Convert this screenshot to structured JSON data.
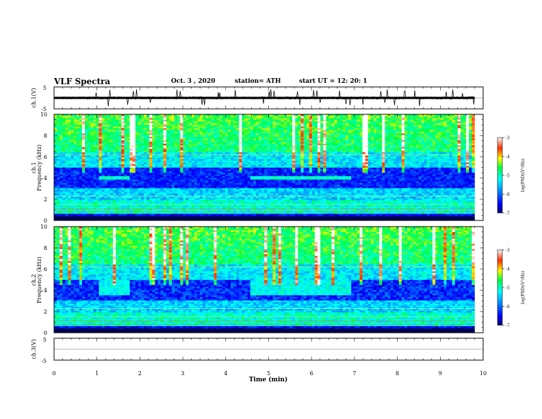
{
  "header": {
    "title": "VLF Spectra",
    "date": "Oct. 3 , 2020",
    "station": "station= ATH",
    "start": "start UT = 12: 20: 1"
  },
  "colorbar": {
    "label": "log(PSD)(V²/Hz)",
    "ticks": [
      "-3",
      "-4",
      "-5",
      "-6",
      "-7"
    ]
  },
  "chart_data": [
    {
      "type": "line",
      "panel": "ch.1 waveform",
      "ylabel": "ch.1(V)",
      "ylim": [
        -5,
        5
      ],
      "yticks": [
        "5",
        "-5"
      ],
      "xlim": [
        0,
        10
      ],
      "description_values": {
        "baseline": 0.0,
        "noise_amplitude": 0.6,
        "spike_amplitude": 4.0
      }
    },
    {
      "type": "heatmap",
      "panel": "ch.1 spectrogram",
      "ylabel": "ch.1 Frequency (kHz)",
      "ylim": [
        0,
        10
      ],
      "yticks": [
        "0",
        "2",
        "4",
        "6",
        "8",
        "10"
      ],
      "xlim": [
        0,
        10
      ],
      "data_end_min": 9.8,
      "clim": [
        -7,
        -3
      ],
      "features": [
        {
          "name": "quiet band",
          "fmin_khz": 3.0,
          "fmax_khz": 5.0
        },
        {
          "name": "tone",
          "f_khz": 4.0,
          "t_start_min": 1.05,
          "t_end_min": 1.75
        },
        {
          "name": "tone",
          "f_khz": 4.0,
          "t_start_min": 4.6,
          "t_end_min": 6.95
        }
      ]
    },
    {
      "type": "heatmap",
      "panel": "ch.2 spectrogram",
      "ylabel": "ch.2 Frequency (kHz)",
      "ylim": [
        0,
        10
      ],
      "yticks": [
        "0",
        "2",
        "4",
        "6",
        "8",
        "10"
      ],
      "xlim": [
        0,
        10
      ],
      "data_end_min": 9.8,
      "clim": [
        -7,
        -3
      ],
      "features": [
        {
          "name": "elevated band",
          "fmin_khz": 3.5,
          "fmax_khz": 5.0,
          "t_start_min": 1.05,
          "t_end_min": 1.75
        },
        {
          "name": "elevated band",
          "fmin_khz": 3.5,
          "fmax_khz": 5.0,
          "t_start_min": 4.6,
          "t_end_min": 6.95
        }
      ]
    },
    {
      "type": "line",
      "panel": "ch.3 waveform",
      "ylabel": "ch.3(V)",
      "ylim": [
        -5,
        5
      ],
      "yticks": [
        "5",
        "-5"
      ],
      "xlim": [
        0,
        10
      ],
      "xlabel": "Time (min)",
      "xticks": [
        "0",
        "1",
        "2",
        "3",
        "4",
        "5",
        "6",
        "7",
        "8",
        "9",
        "10"
      ],
      "description_values": {
        "baseline": 0.0,
        "trace_thickness_v": 1.0
      }
    }
  ]
}
